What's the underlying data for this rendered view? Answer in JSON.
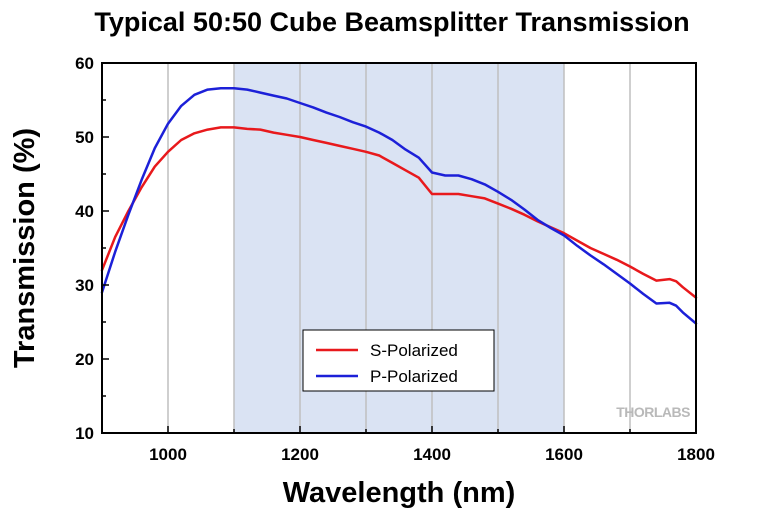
{
  "chart_data": {
    "type": "line",
    "title": "Typical 50:50 Cube Beamsplitter Transmission",
    "xlabel": "Wavelength (nm)",
    "ylabel": "Transmission (%)",
    "xlim": [
      900,
      1800
    ],
    "ylim": [
      10,
      60
    ],
    "xticks": [
      1000,
      1200,
      1400,
      1600,
      1800
    ],
    "yticks": [
      10,
      20,
      30,
      40,
      50,
      60
    ],
    "grid": true,
    "legend_position": "bottom-center",
    "shaded_region": [
      1100,
      1600
    ],
    "colors": {
      "shade": "#dae3f3",
      "grid": "#bfbfbf",
      "s_polarized": "#e8191c",
      "p_polarized": "#1c20d8",
      "logo": "#b9b9b9"
    },
    "series": [
      {
        "name": "S-Polarized",
        "color": "#e8191c",
        "x": [
          900,
          920,
          940,
          960,
          980,
          1000,
          1020,
          1040,
          1060,
          1080,
          1100,
          1120,
          1140,
          1160,
          1180,
          1200,
          1220,
          1240,
          1260,
          1280,
          1300,
          1320,
          1340,
          1360,
          1380,
          1400,
          1420,
          1440,
          1460,
          1480,
          1500,
          1520,
          1540,
          1560,
          1580,
          1600,
          1620,
          1640,
          1660,
          1680,
          1700,
          1720,
          1740,
          1760,
          1770,
          1780,
          1800
        ],
        "y": [
          32.0,
          36.5,
          40.0,
          43.2,
          46.0,
          48.0,
          49.6,
          50.5,
          51.0,
          51.3,
          51.3,
          51.1,
          51.0,
          50.6,
          50.3,
          50.0,
          49.6,
          49.2,
          48.8,
          48.4,
          48.0,
          47.5,
          46.5,
          45.5,
          44.5,
          42.3,
          42.3,
          42.3,
          42.0,
          41.7,
          41.0,
          40.3,
          39.5,
          38.6,
          37.8,
          37.0,
          36.0,
          35.0,
          34.2,
          33.4,
          32.5,
          31.5,
          30.6,
          30.8,
          30.5,
          29.7,
          28.3
        ]
      },
      {
        "name": "P-Polarized",
        "color": "#1c20d8",
        "x": [
          900,
          920,
          940,
          960,
          980,
          1000,
          1020,
          1040,
          1060,
          1080,
          1100,
          1120,
          1140,
          1160,
          1180,
          1200,
          1220,
          1240,
          1260,
          1280,
          1300,
          1320,
          1340,
          1360,
          1380,
          1400,
          1420,
          1440,
          1460,
          1480,
          1500,
          1520,
          1540,
          1560,
          1580,
          1600,
          1620,
          1640,
          1660,
          1680,
          1700,
          1720,
          1740,
          1760,
          1770,
          1780,
          1800
        ],
        "y": [
          29.0,
          34.5,
          39.5,
          44.2,
          48.5,
          51.8,
          54.2,
          55.7,
          56.4,
          56.6,
          56.6,
          56.4,
          56.0,
          55.6,
          55.2,
          54.6,
          54.0,
          53.3,
          52.7,
          52.0,
          51.4,
          50.6,
          49.6,
          48.3,
          47.2,
          45.2,
          44.8,
          44.8,
          44.3,
          43.6,
          42.6,
          41.5,
          40.2,
          38.8,
          37.7,
          36.7,
          35.3,
          34.0,
          32.8,
          31.5,
          30.2,
          28.8,
          27.5,
          27.6,
          27.2,
          26.3,
          24.8
        ]
      }
    ]
  },
  "logo": {
    "text": "THORLABS"
  }
}
